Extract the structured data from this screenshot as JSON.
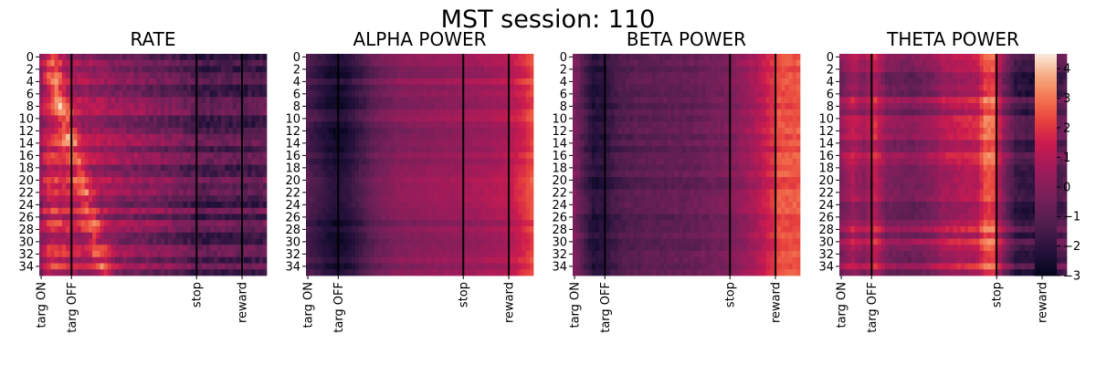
{
  "chart_data": {
    "type": "heatmap",
    "title": "MST session: 110",
    "n_rows": 36,
    "n_cols": 60,
    "y_ticks": [
      "0",
      "2",
      "4",
      "6",
      "8",
      "10",
      "12",
      "14",
      "16",
      "18",
      "20",
      "22",
      "24",
      "26",
      "28",
      "30",
      "32",
      "34"
    ],
    "y_tick_values": [
      0,
      2,
      4,
      6,
      8,
      10,
      12,
      14,
      16,
      18,
      20,
      22,
      24,
      26,
      28,
      30,
      32,
      34
    ],
    "x_ticks": [
      "targ ON",
      "targ OFF",
      "stop",
      "reward"
    ],
    "x_tick_cols": [
      0,
      8,
      41,
      53
    ],
    "event_lines_cols": [
      8,
      41,
      53
    ],
    "colorbar": {
      "min": -3,
      "max": 4.5,
      "ticks": [
        "4",
        "3",
        "2",
        "1",
        "0",
        "−1",
        "−2",
        "−3"
      ],
      "tick_values": [
        4,
        3,
        2,
        1,
        0,
        -1,
        -2,
        -3
      ]
    },
    "panels": [
      {
        "title": "RATE",
        "profile": [
          [
            0,
            0.3
          ],
          [
            2,
            1.4
          ],
          [
            4,
            1.6
          ],
          [
            7,
            1.2
          ],
          [
            9,
            0.9
          ],
          [
            14,
            0.6
          ],
          [
            20,
            0.2
          ],
          [
            28,
            -0.2
          ],
          [
            35,
            -0.6
          ],
          [
            40,
            -1.0
          ],
          [
            43,
            -1.3
          ],
          [
            48,
            -1.1
          ],
          [
            54,
            -1.3
          ],
          [
            59,
            -1.1
          ]
        ],
        "row_var": 0.9,
        "noise": 0.9,
        "diagonal": 1.8
      },
      {
        "title": "ALPHA POWER",
        "profile": [
          [
            0,
            -1.3
          ],
          [
            4,
            -2.0
          ],
          [
            7,
            -2.4
          ],
          [
            10,
            -2.3
          ],
          [
            14,
            -1.5
          ],
          [
            18,
            -0.6
          ],
          [
            24,
            0.0
          ],
          [
            34,
            0.3
          ],
          [
            40,
            0.4
          ],
          [
            46,
            0.6
          ],
          [
            52,
            0.9
          ],
          [
            56,
            1.6
          ],
          [
            59,
            2.3
          ]
        ],
        "row_var": 0.4,
        "noise": 0.3,
        "diagonal": 0
      },
      {
        "title": "BETA POWER",
        "profile": [
          [
            0,
            -0.2
          ],
          [
            3,
            -1.5
          ],
          [
            5,
            -2.2
          ],
          [
            8,
            -2.0
          ],
          [
            12,
            -1.3
          ],
          [
            18,
            -1.0
          ],
          [
            30,
            -0.8
          ],
          [
            40,
            -0.3
          ],
          [
            44,
            0.2
          ],
          [
            48,
            0.8
          ],
          [
            52,
            1.8
          ],
          [
            54,
            2.4
          ],
          [
            59,
            2.5
          ]
        ],
        "row_var": 0.25,
        "noise": 0.45,
        "diagonal": 0
      },
      {
        "title": "THETA POWER",
        "profile": [
          [
            0,
            0.0
          ],
          [
            3,
            1.0
          ],
          [
            6,
            0.3
          ],
          [
            9,
            1.4
          ],
          [
            12,
            0.0
          ],
          [
            18,
            -0.3
          ],
          [
            24,
            0.2
          ],
          [
            27,
            0.8
          ],
          [
            30,
            1.0
          ],
          [
            36,
            1.3
          ],
          [
            38,
            2.6
          ],
          [
            40,
            2.6
          ],
          [
            43,
            0.0
          ],
          [
            46,
            -1.5
          ],
          [
            52,
            -1.8
          ],
          [
            59,
            -0.9
          ]
        ],
        "row_var": 0.8,
        "noise": 0.5,
        "diagonal": 0
      }
    ]
  }
}
